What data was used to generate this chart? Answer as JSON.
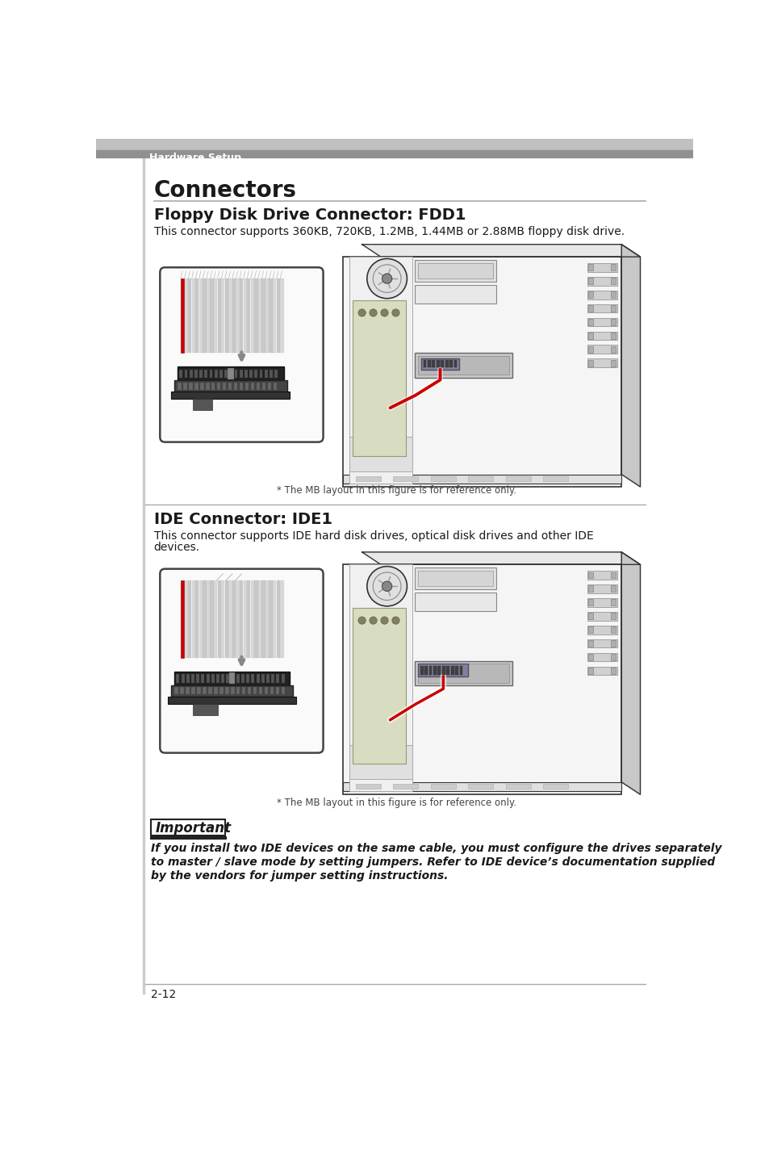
{
  "bg_color": "#ffffff",
  "header_bar_color": "#909090",
  "page_bg": "#ffffff",
  "left_border_color": "#888888",
  "title_main": "Connectors",
  "title_main_size": 20,
  "section1_title": "Floppy Disk Drive Connector: FDD1",
  "section1_title_size": 14,
  "section1_body": "This connector supports 360KB, 720KB, 1.2MB, 1.44MB or 2.88MB floppy disk drive.",
  "section2_title": "IDE Connector: IDE1",
  "section2_title_size": 14,
  "section2_body_line1": "This connector supports IDE hard disk drives, optical disk drives and other IDE",
  "section2_body_line2": "devices.",
  "caption": "* The MB layout in this figure is for reference only.",
  "important_label": "Important",
  "important_line1": "If you install two IDE devices on the same cable, you must configure the drives separately",
  "important_line2": "to master / slave mode by setting jumpers. Refer to IDE device’s documentation supplied",
  "important_line3": "by the vendors for jumper setting instructions.",
  "header_text": "Hardware Setup",
  "footer_text": "2-12",
  "divider_color": "#aaaaaa",
  "text_color": "#1a1a1a",
  "caption_color": "#444444",
  "line_color": "#333333",
  "light_gray": "#e8e8e8",
  "mid_gray": "#bbbbbb",
  "dark_gray": "#555555",
  "ribbon_color": "#d5d5d5",
  "red_wire": "#cc0000"
}
